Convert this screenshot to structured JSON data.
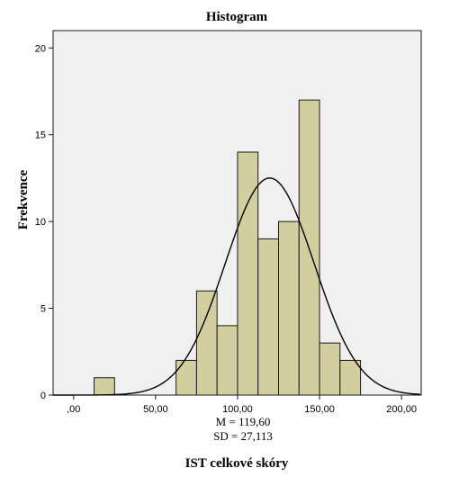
{
  "chart_data": {
    "type": "bar",
    "title": "Histogram",
    "xlabel": "IST celkové skóry",
    "ylabel": "Frekvence",
    "xlim": [
      -12.5,
      212
    ],
    "ylim": [
      0,
      21
    ],
    "grid": false,
    "x_ticks": [
      {
        "value": 0,
        "label": ",00"
      },
      {
        "value": 50,
        "label": "50,00"
      },
      {
        "value": 100,
        "label": "100,00"
      },
      {
        "value": 150,
        "label": "150,00"
      },
      {
        "value": 200,
        "label": "200,00"
      }
    ],
    "y_ticks": [
      {
        "value": 0,
        "label": "0"
      },
      {
        "value": 5,
        "label": "5"
      },
      {
        "value": 10,
        "label": "10"
      },
      {
        "value": 15,
        "label": "15"
      },
      {
        "value": 20,
        "label": "20"
      }
    ],
    "bin_width": 12.5,
    "bins": [
      {
        "start": 12.5,
        "count": 1
      },
      {
        "start": 62.5,
        "count": 2
      },
      {
        "start": 75,
        "count": 6
      },
      {
        "start": 87.5,
        "count": 4
      },
      {
        "start": 100,
        "count": 14
      },
      {
        "start": 112.5,
        "count": 9
      },
      {
        "start": 125,
        "count": 10
      },
      {
        "start": 137.5,
        "count": 17
      },
      {
        "start": 150,
        "count": 3
      },
      {
        "start": 162.5,
        "count": 2
      }
    ],
    "normal_curve": {
      "mean": 119.6,
      "sd": 27.113,
      "n": 68
    },
    "stats": {
      "mean_label": "M = 119,60",
      "sd_label": "SD = 27,113"
    },
    "colors": {
      "plot_bg": "#F0F0F0",
      "bar_fill": "#D3CEA0",
      "bar_edge": "#1a1a1a",
      "curve": "#000000"
    }
  }
}
